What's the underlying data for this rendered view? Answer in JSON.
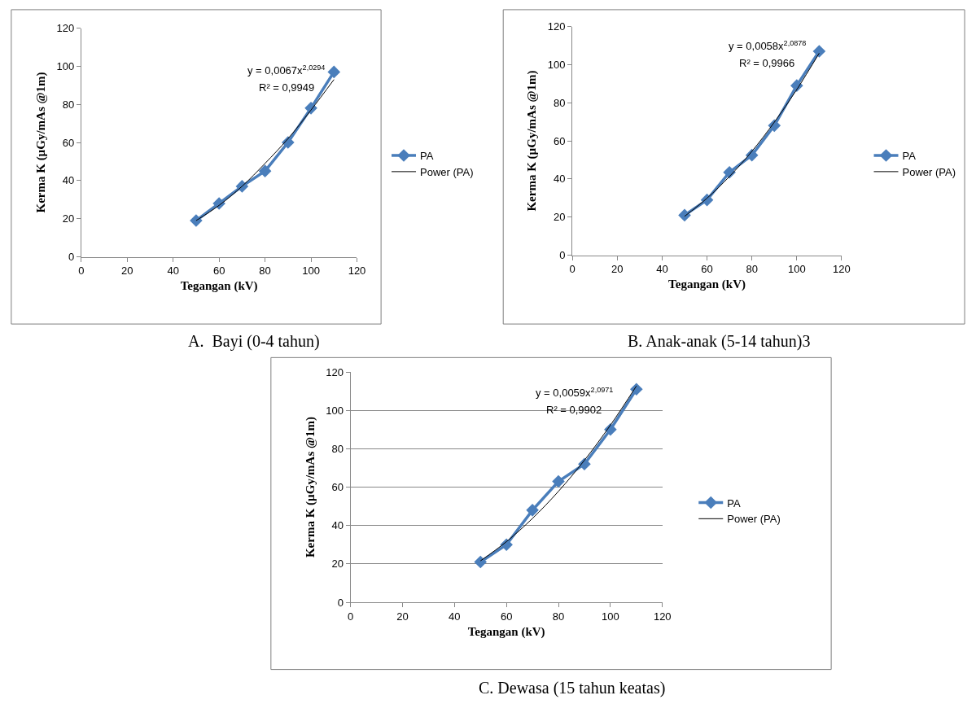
{
  "chart_data": [
    {
      "type": "line",
      "xlabel": "Tegangan (kV)",
      "ylabel": "Kerma K (µGy/mAs @1m)",
      "xlim": [
        0,
        120
      ],
      "xticks": [
        0,
        20,
        40,
        60,
        80,
        100,
        120
      ],
      "ylim": [
        0,
        120
      ],
      "yticks": [
        0,
        20,
        40,
        60,
        80,
        100,
        120
      ],
      "grid": false,
      "legend": "right",
      "annotations": [
        "y = 0,0067x$^{2,0294}$",
        "R² = 0,9949",
        "A.  Bayi (0-4 tahun)"
      ],
      "series": [
        {
          "name": "PA",
          "color": "#4a7ebb",
          "marker": "diamond",
          "line_style": "solid",
          "x": [
            50,
            60,
            70,
            80,
            90,
            100,
            110
          ],
          "values": [
            19,
            28,
            37,
            45,
            60,
            78,
            97
          ]
        },
        {
          "name": "Power (PA)",
          "type": "line",
          "color": "#000000",
          "marker": "none",
          "line_style": "solid",
          "x": [
            50,
            60,
            70,
            80,
            90,
            100,
            110
          ],
          "values": [
            19,
            27,
            37,
            49,
            62,
            77,
            93
          ]
        }
      ]
    },
    {
      "type": "line",
      "xlabel": "Tegangan (kV)",
      "ylabel": "Kerma K (µGy/mAs @1m)",
      "xlim": [
        0,
        120
      ],
      "xticks": [
        0,
        20,
        40,
        60,
        80,
        100,
        120
      ],
      "ylim": [
        0,
        120
      ],
      "yticks": [
        0,
        20,
        40,
        60,
        80,
        100,
        120
      ],
      "grid": false,
      "legend": "right",
      "annotations": [
        "y = 0,0058x$^{2,0878}$",
        "R² = 0,9966",
        "B. Anak-anak (5-14 tahun)3"
      ],
      "series": [
        {
          "name": "PA",
          "color": "#4a7ebb",
          "marker": "diamond",
          "line_style": "solid",
          "x": [
            50,
            60,
            70,
            80,
            90,
            100,
            110
          ],
          "values": [
            21,
            29,
            43.5,
            52.5,
            68,
            89,
            107
          ]
        },
        {
          "name": "Power (PA)",
          "type": "line",
          "color": "#000000",
          "marker": "none",
          "line_style": "solid",
          "x": [
            50,
            60,
            70,
            80,
            90,
            100,
            110
          ],
          "values": [
            20.4,
            29.9,
            41.3,
            54.5,
            69.8,
            86.9,
            106
          ]
        }
      ]
    },
    {
      "type": "line",
      "xlabel": "Tegangan (kV)",
      "ylabel": "Kerma K (µGy/mAs @1m)",
      "xlim": [
        0,
        120
      ],
      "xticks": [
        0,
        20,
        40,
        60,
        80,
        100,
        120
      ],
      "ylim": [
        0,
        120
      ],
      "yticks": [
        0,
        20,
        40,
        60,
        80,
        100,
        120
      ],
      "grid": "y",
      "legend": "right",
      "annotations": [
        "y = 0,0059x$^{2,0971}$",
        "R² = 0,9902",
        "C. Dewasa (15 tahun keatas)"
      ],
      "series": [
        {
          "name": "PA",
          "color": "#4a7ebb",
          "marker": "diamond",
          "line_style": "solid",
          "x": [
            50,
            60,
            70,
            80,
            90,
            100,
            110
          ],
          "values": [
            21,
            30,
            48,
            63,
            72,
            90,
            111
          ]
        },
        {
          "name": "Power (PA)",
          "type": "line",
          "color": "#000000",
          "marker": "none",
          "line_style": "solid",
          "x": [
            50,
            60,
            70,
            80,
            90,
            100,
            110
          ],
          "values": [
            21.6,
            31.6,
            43.7,
            57.8,
            74,
            92.3,
            112.7
          ]
        }
      ]
    }
  ]
}
